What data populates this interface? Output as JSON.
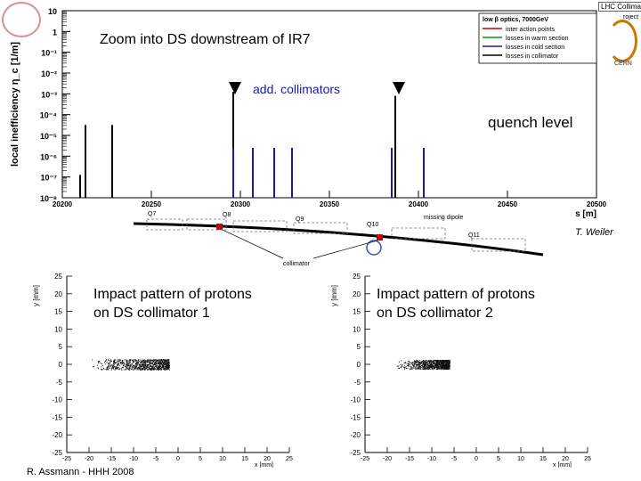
{
  "header": {
    "brand_label": "LHC Collimation",
    "brand_sub_right": "roject",
    "brand_cern": "CERN"
  },
  "callouts": {
    "zoom_title": "Zoom into DS downstream of IR7",
    "add_collimators": "add. collimators",
    "quench_level": "quench level",
    "credit": "T. Weiler",
    "footer": "R. Assmann - HHH 2008",
    "impact_1": "Impact pattern of protons\non DS collimator 1",
    "impact_2": "Impact pattern of protons\non DS collimator 2"
  },
  "beamline": {
    "magnets": [
      "Q7",
      "Q8",
      "Q9",
      "Q10",
      "Q11"
    ],
    "missing_dipole": "missing dipole",
    "collimator": "collimator"
  },
  "colors": {
    "warm": "#1a8a1a",
    "cold": "#1a1aa0",
    "collimator": "#000000",
    "accent": "#cc0000",
    "callout_blue": "#1a1aa0"
  },
  "chart_data": [
    {
      "type": "bar",
      "ylabel": "local inefficiency η_c [1/m]",
      "xlabel": "s [m]",
      "xlim": [
        20200,
        20500
      ],
      "ylim_log10": [
        -8,
        1
      ],
      "xticks": [
        20200,
        20250,
        20300,
        20350,
        20400,
        20450,
        20500
      ],
      "xtick_labels": [
        "20200",
        "20250",
        "20300",
        "20350",
        "20400",
        "20450",
        "20500"
      ],
      "yticks_log10": [
        1,
        0,
        -1,
        -2,
        -3,
        -4,
        -5,
        -6,
        -7,
        -8
      ],
      "ytick_labels": [
        "10",
        "1",
        "10⁻¹",
        "10⁻²",
        "10⁻³",
        "10⁻⁴",
        "10⁻⁵",
        "10⁻⁶",
        "10⁻⁷",
        "10⁻⁸"
      ],
      "legend": {
        "title": "low β optics, 7000GeV",
        "entries": [
          "inter action points",
          "losses in warm section",
          "losses in cold section",
          "losses in collimator"
        ]
      },
      "series": [
        {
          "name": "losses in collimator",
          "x": [
            20210,
            20213,
            20228,
            20296,
            20387
          ],
          "log10_y": [
            -6.9,
            -4.5,
            -4.5,
            -2.9,
            -3.1
          ]
        },
        {
          "name": "losses in cold section",
          "x": [
            20296,
            20307,
            20319,
            20329,
            20385,
            20403
          ],
          "log10_y": [
            -5.6,
            -5.6,
            -5.6,
            -5.6,
            -5.6,
            -5.6
          ]
        }
      ],
      "markers_x": [
        20297,
        20389
      ]
    },
    {
      "type": "scatter",
      "title": "Impact pattern of protons on DS collimator 1",
      "xlabel": "x [mm]",
      "ylabel": "y [mm]",
      "xlim": [
        -25,
        25
      ],
      "ylim": [
        -25,
        25
      ],
      "xticks": [
        -25,
        -20,
        -15,
        -10,
        -5,
        0,
        5,
        10,
        15,
        20,
        25
      ],
      "yticks": [
        25,
        20,
        15,
        10,
        5,
        0,
        -5,
        -10,
        -15,
        -20,
        -25
      ],
      "x_range": [
        -20,
        -2
      ],
      "y_range": [
        -1.5,
        1.5
      ]
    },
    {
      "type": "scatter",
      "title": "Impact pattern of protons on DS collimator 2",
      "xlabel": "x [mm]",
      "ylabel": "y [mm]",
      "xlim": [
        -25,
        25
      ],
      "ylim": [
        -25,
        25
      ],
      "xticks": [
        -25,
        -20,
        -15,
        -10,
        -5,
        0,
        5,
        10,
        15,
        20,
        25
      ],
      "yticks": [
        25,
        20,
        15,
        10,
        5,
        0,
        -5,
        -10,
        -15,
        -20,
        -25
      ],
      "x_range": [
        -18,
        -6
      ],
      "y_range": [
        -1.3,
        1.3
      ]
    }
  ]
}
